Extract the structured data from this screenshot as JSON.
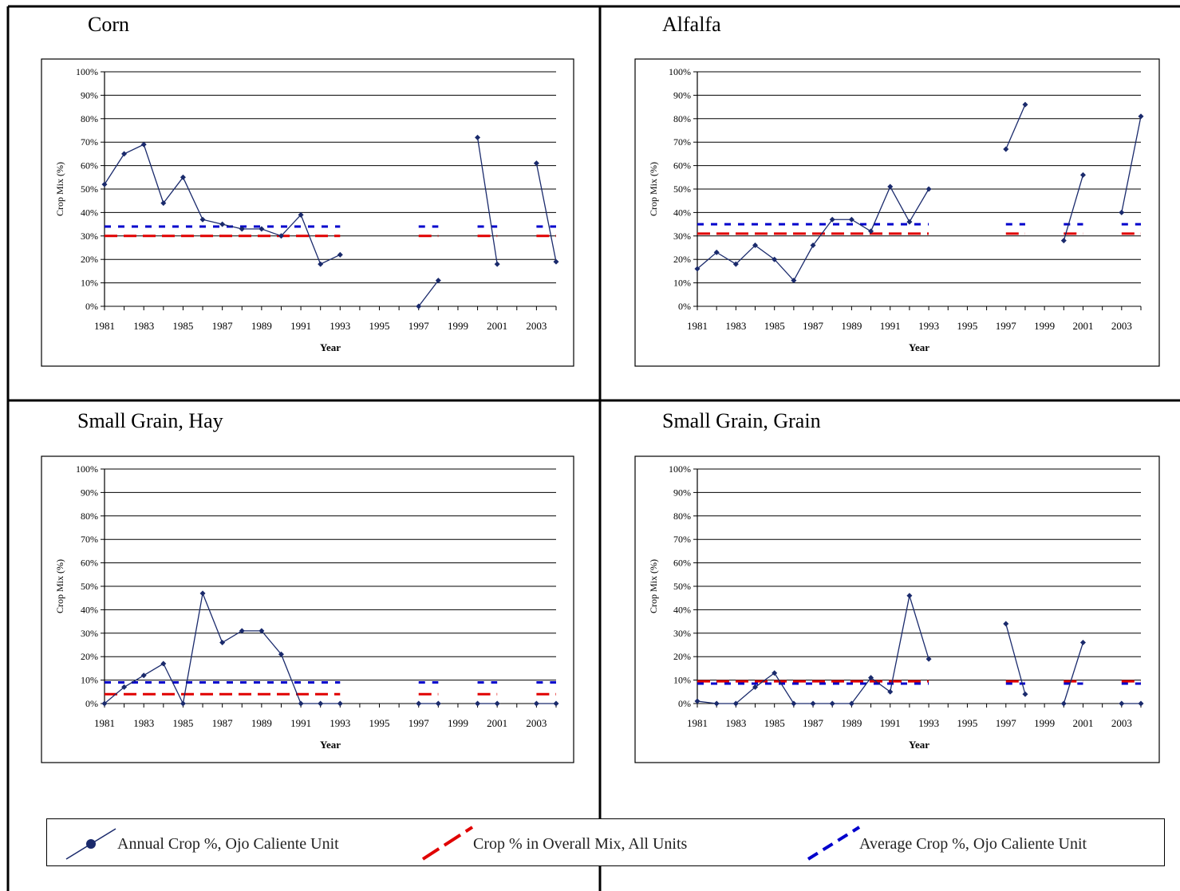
{
  "colors": {
    "annual": "#1a2a6c",
    "overall": "#e00000",
    "average": "#0000cc",
    "grid": "#000000",
    "frame": "#000000"
  },
  "legend": {
    "annual": "Annual Crop %, Ojo Caliente Unit",
    "overall": "Crop % in Overall Mix, All Units",
    "average": "Average Crop %, Ojo Caliente Unit"
  },
  "chart_data": [
    {
      "type": "line",
      "title": "Corn",
      "xlabel": "Year",
      "ylabel": "Crop Mix (%)",
      "xlim": [
        1981,
        2004
      ],
      "ylim": [
        0,
        100
      ],
      "x_ticks": [
        1981,
        1983,
        1985,
        1987,
        1989,
        1991,
        1993,
        1995,
        1997,
        1999,
        2001,
        2003
      ],
      "y_ticks": [
        "0%",
        "10%",
        "20%",
        "30%",
        "40%",
        "50%",
        "60%",
        "70%",
        "80%",
        "90%",
        "100%"
      ],
      "series": [
        {
          "name": "Annual Crop %, Ojo Caliente Unit",
          "segments": [
            [
              [
                1981,
                52
              ],
              [
                1982,
                65
              ],
              [
                1983,
                69
              ],
              [
                1984,
                44
              ],
              [
                1985,
                55
              ],
              [
                1986,
                37
              ],
              [
                1987,
                35
              ],
              [
                1988,
                33
              ],
              [
                1989,
                33
              ],
              [
                1990,
                30
              ],
              [
                1991,
                39
              ],
              [
                1992,
                18
              ],
              [
                1993,
                22
              ]
            ],
            [
              [
                1997,
                0
              ],
              [
                1998,
                11
              ]
            ],
            [
              [
                2000,
                72
              ],
              [
                2001,
                18
              ]
            ],
            [
              [
                2003,
                61
              ],
              [
                2004,
                19
              ]
            ]
          ]
        },
        {
          "name": "Crop % in Overall Mix, All Units",
          "value": 30,
          "ranges": [
            [
              1981,
              1993
            ],
            [
              1997,
              1998
            ],
            [
              2000,
              2001
            ],
            [
              2003,
              2004
            ]
          ]
        },
        {
          "name": "Average Crop %, Ojo Caliente Unit",
          "value": 34,
          "ranges": [
            [
              1981,
              1993
            ],
            [
              1997,
              1998
            ],
            [
              2000,
              2001
            ],
            [
              2003,
              2004
            ]
          ]
        }
      ]
    },
    {
      "type": "line",
      "title": "Alfalfa",
      "xlabel": "Year",
      "ylabel": "Crop Mix (%)",
      "xlim": [
        1981,
        2004
      ],
      "ylim": [
        0,
        100
      ],
      "x_ticks": [
        1981,
        1983,
        1985,
        1987,
        1989,
        1991,
        1993,
        1995,
        1997,
        1999,
        2001,
        2003
      ],
      "y_ticks": [
        "0%",
        "10%",
        "20%",
        "30%",
        "40%",
        "50%",
        "60%",
        "70%",
        "80%",
        "90%",
        "100%"
      ],
      "series": [
        {
          "name": "Annual Crop %, Ojo Caliente Unit",
          "segments": [
            [
              [
                1981,
                16
              ],
              [
                1982,
                23
              ],
              [
                1983,
                18
              ],
              [
                1984,
                26
              ],
              [
                1985,
                20
              ],
              [
                1986,
                11
              ],
              [
                1987,
                26
              ],
              [
                1988,
                37
              ],
              [
                1989,
                37
              ],
              [
                1990,
                32
              ],
              [
                1991,
                51
              ],
              [
                1992,
                36
              ],
              [
                1993,
                50
              ]
            ],
            [
              [
                1997,
                67
              ],
              [
                1998,
                86
              ]
            ],
            [
              [
                2000,
                28
              ],
              [
                2001,
                56
              ]
            ],
            [
              [
                2003,
                40
              ],
              [
                2004,
                81
              ]
            ]
          ]
        },
        {
          "name": "Crop % in Overall Mix, All Units",
          "value": 31,
          "ranges": [
            [
              1981,
              1993
            ],
            [
              1997,
              1998
            ],
            [
              2000,
              2001
            ],
            [
              2003,
              2004
            ]
          ]
        },
        {
          "name": "Average Crop %, Ojo Caliente Unit",
          "value": 35,
          "ranges": [
            [
              1981,
              1993
            ],
            [
              1997,
              1998
            ],
            [
              2000,
              2001
            ],
            [
              2003,
              2004
            ]
          ]
        }
      ]
    },
    {
      "type": "line",
      "title": "Small Grain, Hay",
      "xlabel": "Year",
      "ylabel": "Crop Mix (%)",
      "xlim": [
        1981,
        2004
      ],
      "ylim": [
        0,
        100
      ],
      "x_ticks": [
        1981,
        1983,
        1985,
        1987,
        1989,
        1991,
        1993,
        1995,
        1997,
        1999,
        2001,
        2003
      ],
      "y_ticks": [
        "0%",
        "10%",
        "20%",
        "30%",
        "40%",
        "50%",
        "60%",
        "70%",
        "80%",
        "90%",
        "100%"
      ],
      "series": [
        {
          "name": "Annual Crop %, Ojo Caliente Unit",
          "segments": [
            [
              [
                1981,
                0
              ],
              [
                1982,
                7
              ],
              [
                1983,
                12
              ],
              [
                1984,
                17
              ],
              [
                1985,
                0
              ],
              [
                1986,
                47
              ],
              [
                1987,
                26
              ],
              [
                1988,
                31
              ],
              [
                1989,
                31
              ],
              [
                1990,
                21
              ],
              [
                1991,
                0
              ],
              [
                1992,
                0
              ],
              [
                1993,
                0
              ]
            ],
            [
              [
                1997,
                0
              ],
              [
                1998,
                0
              ]
            ],
            [
              [
                2000,
                0
              ],
              [
                2001,
                0
              ]
            ],
            [
              [
                2003,
                0
              ],
              [
                2004,
                0
              ]
            ]
          ]
        },
        {
          "name": "Crop % in Overall Mix, All Units",
          "value": 4,
          "ranges": [
            [
              1981,
              1993
            ],
            [
              1997,
              1998
            ],
            [
              2000,
              2001
            ],
            [
              2003,
              2004
            ]
          ]
        },
        {
          "name": "Average Crop %, Ojo Caliente Unit",
          "value": 9,
          "ranges": [
            [
              1981,
              1993
            ],
            [
              1997,
              1998
            ],
            [
              2000,
              2001
            ],
            [
              2003,
              2004
            ]
          ]
        }
      ]
    },
    {
      "type": "line",
      "title": "Small Grain, Grain",
      "xlabel": "Year",
      "ylabel": "Crop Mix (%)",
      "xlim": [
        1981,
        2004
      ],
      "ylim": [
        0,
        100
      ],
      "x_ticks": [
        1981,
        1983,
        1985,
        1987,
        1989,
        1991,
        1993,
        1995,
        1997,
        1999,
        2001,
        2003
      ],
      "y_ticks": [
        "0%",
        "10%",
        "20%",
        "30%",
        "40%",
        "50%",
        "60%",
        "70%",
        "80%",
        "90%",
        "100%"
      ],
      "series": [
        {
          "name": "Annual Crop %, Ojo Caliente Unit",
          "segments": [
            [
              [
                1981,
                1
              ],
              [
                1982,
                0
              ],
              [
                1983,
                0
              ],
              [
                1984,
                7
              ],
              [
                1985,
                13
              ],
              [
                1986,
                0
              ],
              [
                1987,
                0
              ],
              [
                1988,
                0
              ],
              [
                1989,
                0
              ],
              [
                1990,
                11
              ],
              [
                1991,
                5
              ],
              [
                1992,
                46
              ],
              [
                1993,
                19
              ]
            ],
            [
              [
                1997,
                34
              ],
              [
                1998,
                4
              ]
            ],
            [
              [
                2000,
                0
              ],
              [
                2001,
                26
              ]
            ],
            [
              [
                2003,
                0
              ],
              [
                2004,
                0
              ]
            ]
          ]
        },
        {
          "name": "Crop % in Overall Mix, All Units",
          "value": 9.5,
          "ranges": [
            [
              1981,
              1993
            ],
            [
              1997,
              1998
            ],
            [
              2000,
              2001
            ],
            [
              2003,
              2004
            ]
          ]
        },
        {
          "name": "Average Crop %, Ojo Caliente Unit",
          "value": 8.5,
          "ranges": [
            [
              1981,
              1993
            ],
            [
              1997,
              1998
            ],
            [
              2000,
              2001
            ],
            [
              2003,
              2004
            ]
          ]
        }
      ]
    }
  ]
}
